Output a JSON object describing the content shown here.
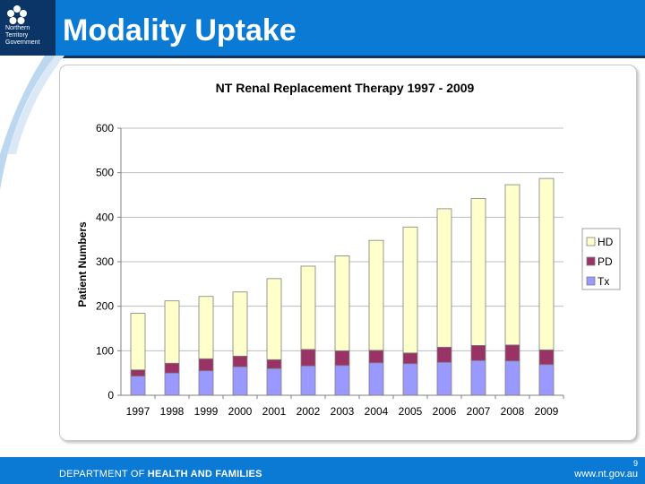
{
  "header": {
    "title": "Modality Uptake",
    "logo_lines": [
      "Northern",
      "Territory",
      "Government"
    ]
  },
  "footer": {
    "dept_prefix": "DEPARTMENT OF ",
    "dept_bold": "HEALTH AND FAMILIES",
    "url": "www.nt.gov.au",
    "page_number": "9"
  },
  "colors": {
    "header_blue": "#0a7ad4",
    "navy": "#0a3566",
    "hd": "#ffffcc",
    "pd": "#993366",
    "tx": "#9999ff"
  },
  "chart_data": {
    "type": "bar",
    "stacked": true,
    "title": "NT Renal Replacement Therapy 1997 - 2009",
    "xlabel": "",
    "ylabel": "Patient Numbers",
    "ylim": [
      0,
      600
    ],
    "yticks": [
      0,
      100,
      200,
      300,
      400,
      500,
      600
    ],
    "grid": true,
    "legend_position": "right",
    "categories": [
      "1997",
      "1998",
      "1999",
      "2000",
      "2001",
      "2002",
      "2003",
      "2004",
      "2005",
      "2006",
      "2007",
      "2008",
      "2009"
    ],
    "series": [
      {
        "name": "Tx",
        "color": "#9999ff",
        "values": [
          43,
          50,
          55,
          64,
          60,
          66,
          67,
          73,
          71,
          74,
          78,
          77,
          69
        ]
      },
      {
        "name": "PD",
        "color": "#993366",
        "values": [
          14,
          22,
          27,
          24,
          20,
          37,
          33,
          28,
          24,
          34,
          34,
          36,
          33
        ]
      },
      {
        "name": "HD",
        "color": "#ffffcc",
        "values": [
          127,
          140,
          140,
          144,
          182,
          187,
          213,
          247,
          283,
          311,
          330,
          360,
          385
        ]
      }
    ],
    "legend_order": [
      "HD",
      "PD",
      "Tx"
    ]
  }
}
